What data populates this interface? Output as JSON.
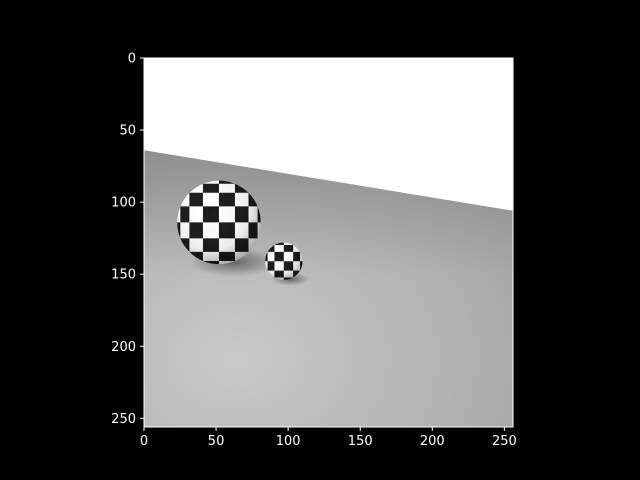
{
  "figure": {
    "background": "#000000",
    "foreground": "#ffffff"
  },
  "chart_data": {
    "type": "image",
    "colormap": "gray",
    "title": "",
    "xlabel": "",
    "ylabel": "",
    "xlim": [
      0,
      256
    ],
    "ylim": [
      256,
      0
    ],
    "image_size": [
      256,
      256
    ],
    "y_axis_inverted": true,
    "grid": false,
    "x_ticks": [
      0,
      50,
      100,
      150,
      200,
      250
    ],
    "y_ticks": [
      0,
      50,
      100,
      150,
      200,
      250
    ],
    "x_tick_labels": [
      "0",
      "50",
      "100",
      "150",
      "200",
      "250"
    ],
    "y_tick_labels": [
      "0",
      "50",
      "100",
      "150",
      "200",
      "250"
    ],
    "scene": {
      "horizon_line": {
        "left_y": 64,
        "right_y": 106
      },
      "sky_color": "#ffffff",
      "floor_colors": [
        "#c8c8c8",
        "#9a9a9a"
      ],
      "spheres": [
        {
          "name": "large checkered sphere",
          "cx": 52,
          "cy": 114,
          "r": 29,
          "checker_cells": 8
        },
        {
          "name": "small checkered sphere",
          "cx": 97,
          "cy": 141,
          "r": 13,
          "checker_cells": 6
        }
      ]
    }
  }
}
